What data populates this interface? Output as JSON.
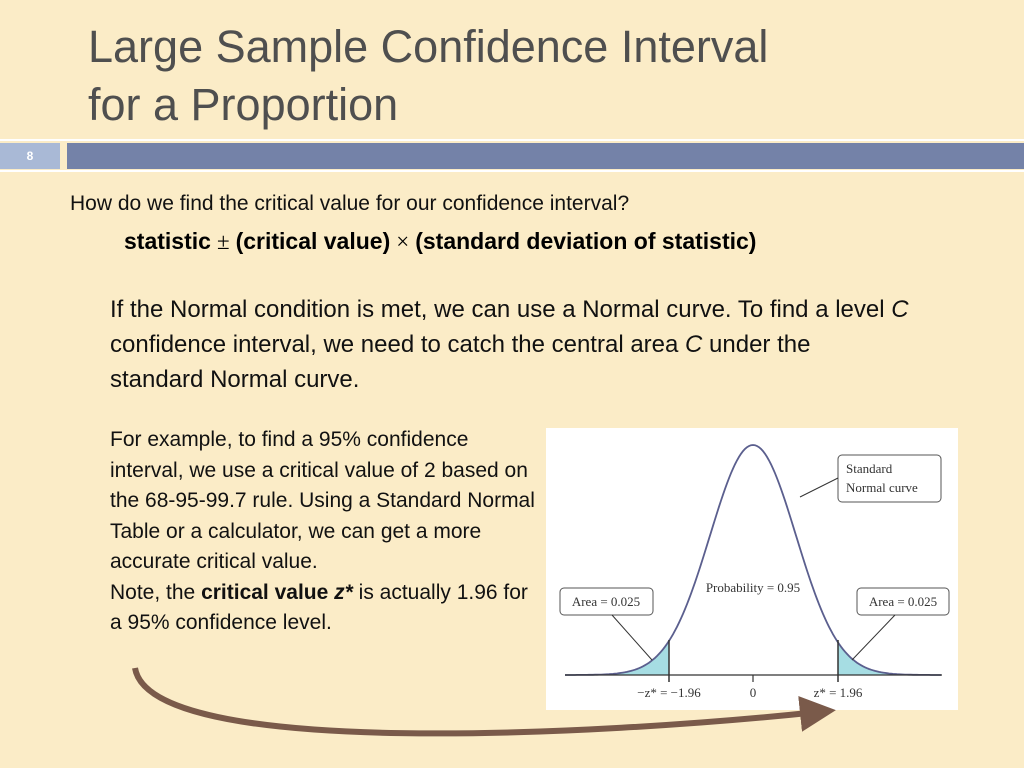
{
  "header": {
    "title_lines": [
      "Large Sample Confidence Interval",
      "for a Proportion"
    ],
    "slide_number": "8"
  },
  "question": "How do we find the critical value for our confidence interval?",
  "formula": {
    "statistic": "statistic",
    "plus_minus": "±",
    "critical_value": "(critical value)",
    "times": "×",
    "standard_deviation": "(standard deviation of statistic)"
  },
  "paragraph": [
    "If the Normal condition is met, we can use a Normal curve. To find a level ",
    "C",
    " confidence interval, we need to catch the central area ",
    "C",
    " under the standard Normal curve."
  ],
  "example": {
    "text": "For example, to find a 95% confidence interval, we use a critical value of 2 based on the 68-95-99.7 rule.  Using a Standard Normal Table or a calculator, we can get a more accurate critical value.",
    "note": [
      "Note, the ",
      "critical value ",
      "z*",
      " is actually 1.96 for a 95% confidence level."
    ]
  },
  "figure": {
    "curve_label": [
      "Standard",
      "Normal curve"
    ],
    "probability_label": "Probability = 0.95",
    "left_area_label": "Area = 0.025",
    "right_area_label": "Area = 0.025",
    "axis_labels": [
      "−z* = −1.96",
      "0",
      "z* = 1.96"
    ]
  }
}
